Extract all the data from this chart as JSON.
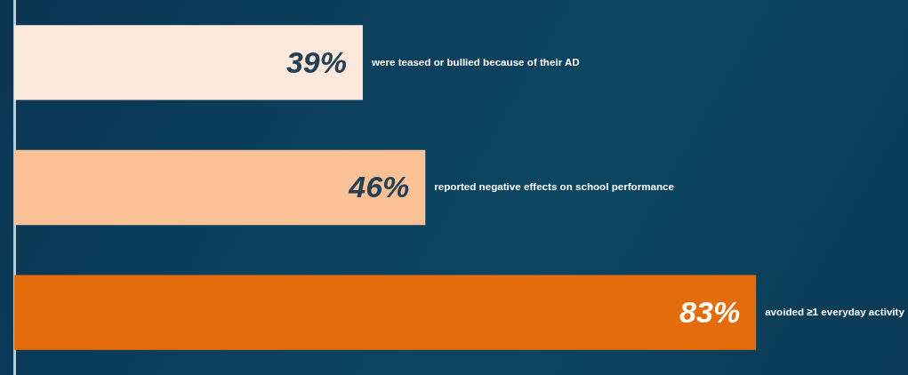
{
  "chart_data": {
    "type": "bar",
    "orientation": "horizontal",
    "categories": [
      "were teased or bullied because of their AD",
      "reported negative effects on school performance",
      "avoided ≥1 everyday activity"
    ],
    "values": [
      39,
      46,
      83
    ],
    "colors": [
      "#fde9dc",
      "#f9c195",
      "#e46c0a"
    ],
    "value_labels": [
      "39%",
      "46%",
      "83%"
    ],
    "xlim": [
      0,
      100
    ],
    "tick_labels": false,
    "grid": false,
    "legend": false
  }
}
